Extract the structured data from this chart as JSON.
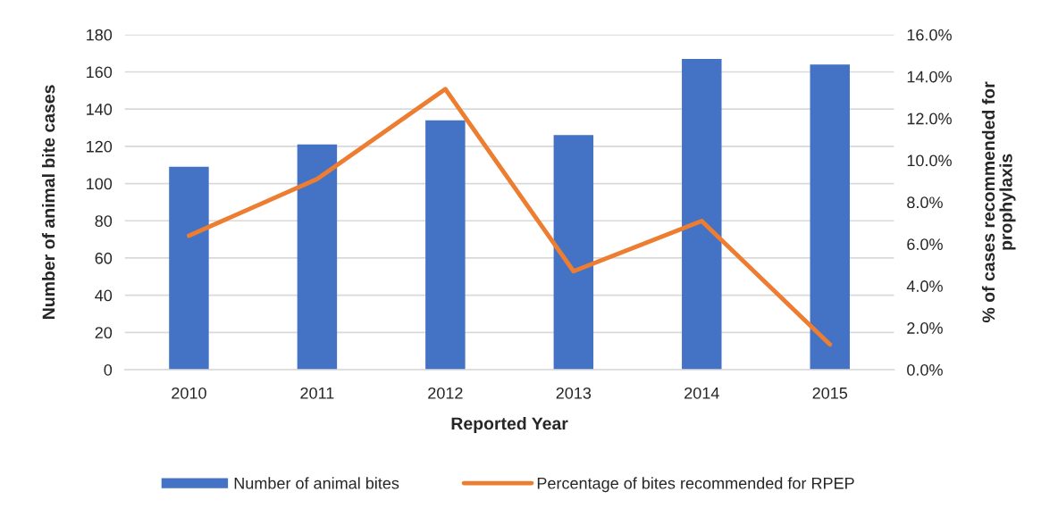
{
  "chart_data": {
    "type": "bar",
    "xlabel": "Reported Year",
    "ylabel": "Number of animal bite cases",
    "y2label": "% of cases recommended for\nprophylaxis",
    "categories": [
      "2010",
      "2011",
      "2012",
      "2013",
      "2014",
      "2015"
    ],
    "series": [
      {
        "name": "Number of animal bites",
        "color": "#4472c4",
        "values": [
          109,
          121,
          134,
          126,
          167,
          164
        ]
      },
      {
        "name": "Percentage of bites recommended for RPEP",
        "type": "line",
        "axis": "y2",
        "color": "#ed7d31",
        "values": [
          6.4,
          9.1,
          13.4,
          4.7,
          7.1,
          1.2
        ]
      }
    ],
    "ylim": [
      0,
      180
    ],
    "yticks": [
      0,
      20,
      40,
      60,
      80,
      100,
      120,
      140,
      160,
      180
    ],
    "y2lim": [
      0,
      16
    ],
    "y2ticks": [
      {
        "value": 0,
        "label": "0.0%"
      },
      {
        "value": 2,
        "label": "2.0%"
      },
      {
        "value": 4,
        "label": "4.0%"
      },
      {
        "value": 6,
        "label": "6.0%"
      },
      {
        "value": 8,
        "label": "8.0%"
      },
      {
        "value": 10,
        "label": "10.0%"
      },
      {
        "value": 12,
        "label": "12.0%"
      },
      {
        "value": 14,
        "label": "14.0%"
      },
      {
        "value": 16,
        "label": "16.0%"
      }
    ],
    "grid": "y",
    "legend": "bottom",
    "line_style": "solid"
  }
}
